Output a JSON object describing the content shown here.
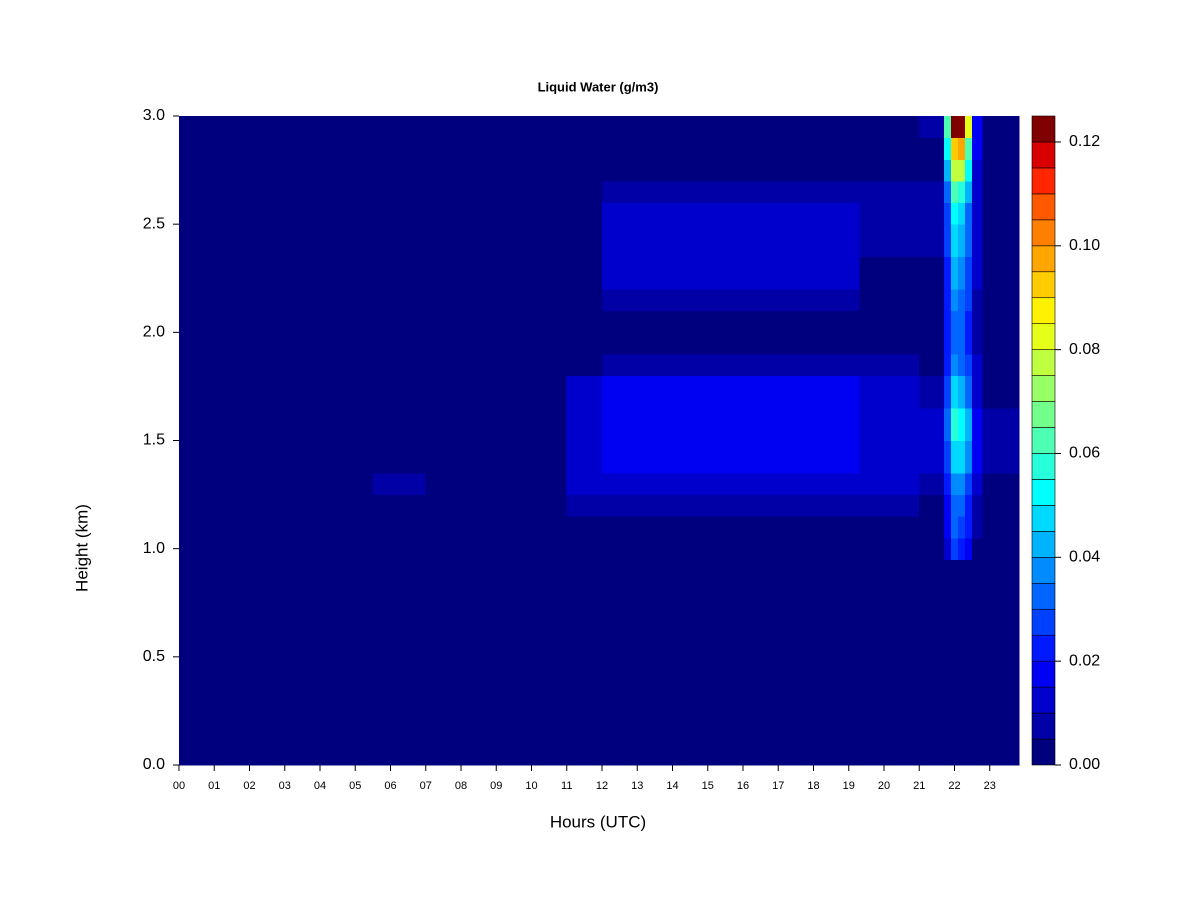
{
  "chart_data": {
    "type": "heatmap",
    "title": "Liquid Water (g/m3)",
    "x_label": "Hours (UTC)",
    "y_label": "Height (km)",
    "xlim": [
      0,
      23.83
    ],
    "ylim": [
      0,
      3
    ],
    "xticks": [
      {
        "value": 0,
        "label": "00"
      },
      {
        "value": 1,
        "label": "01"
      },
      {
        "value": 2,
        "label": "02"
      },
      {
        "value": 3,
        "label": "03"
      },
      {
        "value": 4,
        "label": "04"
      },
      {
        "value": 5,
        "label": "05"
      },
      {
        "value": 6,
        "label": "06"
      },
      {
        "value": 7,
        "label": "07"
      },
      {
        "value": 8,
        "label": "08"
      },
      {
        "value": 9,
        "label": "09"
      },
      {
        "value": 10,
        "label": "10"
      },
      {
        "value": 11,
        "label": "11"
      },
      {
        "value": 12,
        "label": "12"
      },
      {
        "value": 13,
        "label": "13"
      },
      {
        "value": 14,
        "label": "14"
      },
      {
        "value": 15,
        "label": "15"
      },
      {
        "value": 16,
        "label": "16"
      },
      {
        "value": 17,
        "label": "17"
      },
      {
        "value": 18,
        "label": "18"
      },
      {
        "value": 19,
        "label": "19"
      },
      {
        "value": 20,
        "label": "20"
      },
      {
        "value": 21,
        "label": "21"
      },
      {
        "value": 22,
        "label": "22"
      },
      {
        "value": 23,
        "label": "23"
      }
    ],
    "yticks": [
      {
        "value": 0,
        "label": "0.0"
      },
      {
        "value": 0.5,
        "label": "0.5"
      },
      {
        "value": 1,
        "label": "1.0"
      },
      {
        "value": 1.5,
        "label": "1.5"
      },
      {
        "value": 2,
        "label": "2.0"
      },
      {
        "value": 2.5,
        "label": "2.5"
      },
      {
        "value": 3,
        "label": "3.0"
      }
    ],
    "x_edges": [
      0,
      5.5,
      7,
      11,
      12,
      19.3,
      21,
      21.7,
      21.9,
      22.1,
      22.3,
      22.5,
      22.8,
      23.83
    ],
    "y_edges": [
      0,
      0.95,
      1.05,
      1.15,
      1.25,
      1.35,
      1.5,
      1.65,
      1.8,
      1.9,
      2.1,
      2.2,
      2.35,
      2.5,
      2.6,
      2.7,
      2.8,
      2.9,
      3.0
    ],
    "values": [
      [
        0.002,
        0.002,
        0.002,
        0.002,
        0.002,
        0.002,
        0.002,
        0.003,
        0.004,
        0.004,
        0.003,
        0.002,
        0.002
      ],
      [
        0.002,
        0.002,
        0.002,
        0.002,
        0.002,
        0.002,
        0.002,
        0.012,
        0.025,
        0.022,
        0.018,
        0.004,
        0.002
      ],
      [
        0.002,
        0.002,
        0.002,
        0.002,
        0.002,
        0.002,
        0.002,
        0.015,
        0.03,
        0.028,
        0.022,
        0.006,
        0.002
      ],
      [
        0.002,
        0.002,
        0.002,
        0.006,
        0.008,
        0.006,
        0.004,
        0.018,
        0.032,
        0.03,
        0.024,
        0.008,
        0.002
      ],
      [
        0.002,
        0.005,
        0.004,
        0.012,
        0.014,
        0.011,
        0.006,
        0.022,
        0.038,
        0.035,
        0.028,
        0.012,
        0.004
      ],
      [
        0.002,
        0.003,
        0.002,
        0.013,
        0.016,
        0.013,
        0.01,
        0.028,
        0.048,
        0.045,
        0.035,
        0.016,
        0.008
      ],
      [
        0.002,
        0.003,
        0.002,
        0.013,
        0.019,
        0.014,
        0.011,
        0.03,
        0.055,
        0.05,
        0.04,
        0.018,
        0.009
      ],
      [
        0.002,
        0.004,
        0.002,
        0.011,
        0.015,
        0.012,
        0.009,
        0.026,
        0.045,
        0.042,
        0.033,
        0.014,
        0.004
      ],
      [
        0.002,
        0.002,
        0.002,
        0.004,
        0.006,
        0.006,
        0.004,
        0.022,
        0.035,
        0.034,
        0.026,
        0.01,
        0.002
      ],
      [
        0.002,
        0.002,
        0.002,
        0.002,
        0.002,
        0.002,
        0.003,
        0.02,
        0.032,
        0.03,
        0.024,
        0.008,
        0.002
      ],
      [
        0.002,
        0.002,
        0.002,
        0.002,
        0.008,
        0.003,
        0.003,
        0.022,
        0.036,
        0.034,
        0.026,
        0.009,
        0.002
      ],
      [
        0.002,
        0.002,
        0.002,
        0.002,
        0.011,
        0.004,
        0.003,
        0.024,
        0.04,
        0.038,
        0.028,
        0.01,
        0.002
      ],
      [
        0.002,
        0.002,
        0.002,
        0.002,
        0.013,
        0.006,
        0.005,
        0.026,
        0.045,
        0.042,
        0.03,
        0.011,
        0.002
      ],
      [
        0.002,
        0.002,
        0.002,
        0.002,
        0.012,
        0.009,
        0.008,
        0.028,
        0.05,
        0.048,
        0.034,
        0.012,
        0.002
      ],
      [
        0.002,
        0.002,
        0.002,
        0.002,
        0.008,
        0.007,
        0.005,
        0.032,
        0.06,
        0.058,
        0.04,
        0.013,
        0.002
      ],
      [
        0.002,
        0.002,
        0.002,
        0.002,
        0.003,
        0.002,
        0.003,
        0.04,
        0.075,
        0.075,
        0.05,
        0.014,
        0.002
      ],
      [
        0.002,
        0.002,
        0.002,
        0.002,
        0.002,
        0.002,
        0.004,
        0.05,
        0.09,
        0.095,
        0.06,
        0.015,
        0.002
      ],
      [
        0.002,
        0.002,
        0.002,
        0.002,
        0.002,
        0.002,
        0.005,
        0.06,
        0.12,
        0.124,
        0.08,
        0.016,
        0.003
      ]
    ],
    "colorbar": {
      "levels": [
        0,
        0.005,
        0.01,
        0.015,
        0.02,
        0.025,
        0.03,
        0.035,
        0.04,
        0.045,
        0.05,
        0.055,
        0.06,
        0.065,
        0.07,
        0.075,
        0.08,
        0.085,
        0.09,
        0.095,
        0.1,
        0.105,
        0.11,
        0.115,
        0.12,
        0.125
      ],
      "colors": [
        "#00007F",
        "#0000A6",
        "#0000CC",
        "#0000F2",
        "#0019FF",
        "#0040FF",
        "#0066FF",
        "#008CFF",
        "#00B3FF",
        "#00D9FF",
        "#00FFFF",
        "#26FFD9",
        "#4CFFB3",
        "#73FF8C",
        "#99FF66",
        "#BFFF40",
        "#E6FF19",
        "#FFF200",
        "#FFCC00",
        "#FFA600",
        "#FF7F00",
        "#FF5900",
        "#FF2600",
        "#D90000",
        "#800000"
      ],
      "ticks": [
        {
          "value": 0,
          "label": "0.00"
        },
        {
          "value": 0.02,
          "label": "0.02"
        },
        {
          "value": 0.04,
          "label": "0.04"
        },
        {
          "value": 0.06,
          "label": "0.06"
        },
        {
          "value": 0.08,
          "label": "0.08"
        },
        {
          "value": 0.1,
          "label": "0.10"
        },
        {
          "value": 0.12,
          "label": "0.12"
        }
      ]
    }
  }
}
